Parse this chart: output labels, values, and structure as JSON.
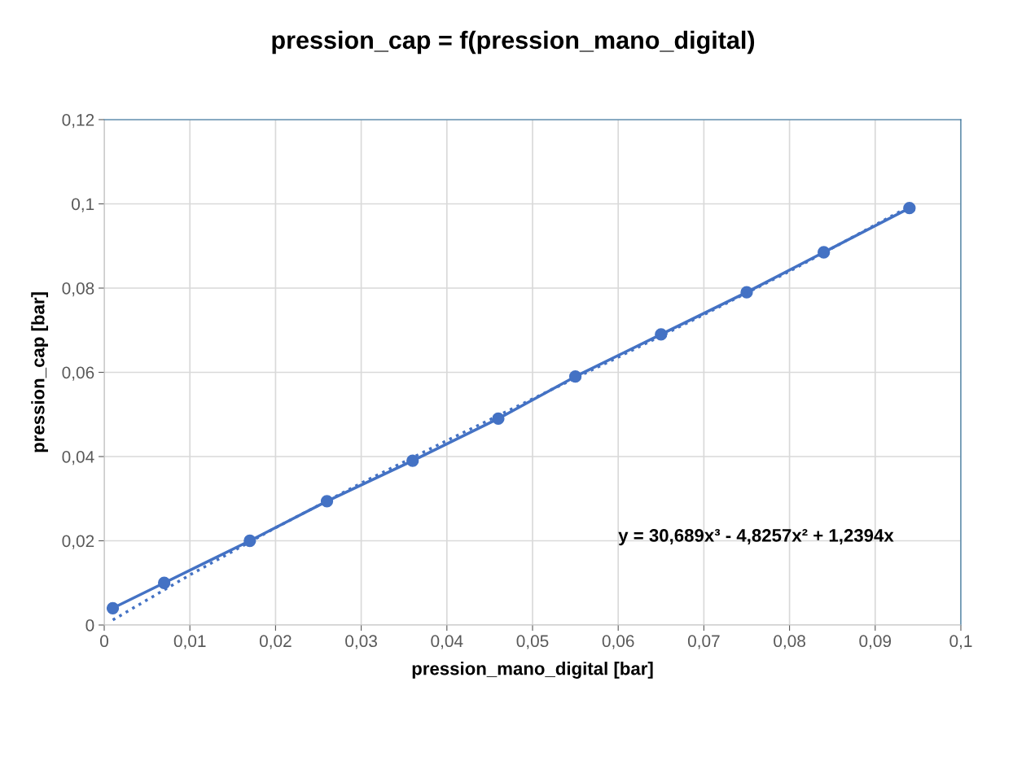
{
  "chart_data": {
    "type": "line",
    "title": "pression_cap = f(pression_mano_digital)",
    "xlabel": "pression_mano_digital [bar]",
    "ylabel": "pression_cap [bar]",
    "annotations": [
      "y = 30,689x³ - 4,8257x² + 1,2394x"
    ],
    "series": [
      {
        "color": "#4472c4",
        "marker": "circle",
        "line_style": "solid",
        "x": [
          0.001,
          0.007,
          0.017,
          0.026,
          0.036,
          0.046,
          0.055,
          0.065,
          0.075,
          0.084,
          0.094
        ],
        "values": [
          0.004,
          0.01,
          0.02,
          0.0294,
          0.039,
          0.049,
          0.059,
          0.069,
          0.079,
          0.0885,
          0.099
        ]
      },
      {
        "color": "#4472c4",
        "marker": "none",
        "line_style": "dotted",
        "x": [
          0.001,
          0.01,
          0.02,
          0.03,
          0.04,
          0.05,
          0.06,
          0.07,
          0.08,
          0.094
        ],
        "values": [
          0.0012,
          0.0119,
          0.0231,
          0.0337,
          0.0438,
          0.0537,
          0.0636,
          0.0737,
          0.084,
          0.0994
        ]
      }
    ],
    "xlim": [
      0,
      0.1
    ],
    "ylim": [
      0,
      0.12
    ],
    "xticks": [
      0,
      {
        "value": 0.01,
        "label": "0,01"
      },
      {
        "value": 0.02,
        "label": "0,02"
      },
      {
        "value": 0.03,
        "label": "0,03"
      },
      {
        "value": 0.04,
        "label": "0,04"
      },
      {
        "value": 0.05,
        "label": "0,05"
      },
      {
        "value": 0.06,
        "label": "0,06"
      },
      {
        "value": 0.07,
        "label": "0,07"
      },
      {
        "value": 0.08,
        "label": "0,08"
      },
      {
        "value": 0.09,
        "label": "0,09"
      },
      {
        "value": 0.1,
        "label": "0,1"
      }
    ],
    "yticks": [
      0,
      {
        "value": 0.02,
        "label": "0,02"
      },
      {
        "value": 0.04,
        "label": "0,04"
      },
      {
        "value": 0.06,
        "label": "0,06"
      },
      {
        "value": 0.08,
        "label": "0,08"
      },
      {
        "value": 0.1,
        "label": "0,1"
      },
      {
        "value": 0.12,
        "label": "0,12"
      }
    ],
    "grid": true,
    "legend": false
  }
}
